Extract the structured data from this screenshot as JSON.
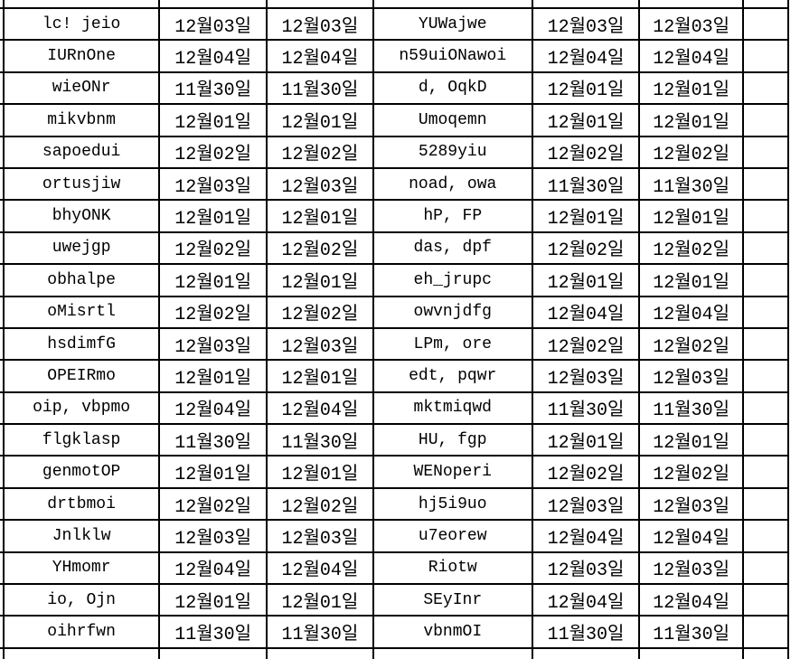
{
  "colors": {
    "background": "#ffffff",
    "grid_line": "#000000",
    "text": "#000000"
  },
  "table": {
    "column_kinds": [
      "label",
      "date",
      "date",
      "label",
      "date",
      "date"
    ],
    "rows": [
      [
        "lc! jeio",
        "12월03일",
        "12월03일",
        "YUWajwe",
        "12월03일",
        "12월03일"
      ],
      [
        "IURnOne",
        "12월04일",
        "12월04일",
        "n59uiONawoi",
        "12월04일",
        "12월04일"
      ],
      [
        "wieONr",
        "11월30일",
        "11월30일",
        "d, OqkD",
        "12월01일",
        "12월01일"
      ],
      [
        "mikvbnm",
        "12월01일",
        "12월01일",
        "Umoqemn",
        "12월01일",
        "12월01일"
      ],
      [
        "sapoedui",
        "12월02일",
        "12월02일",
        "5289yiu",
        "12월02일",
        "12월02일"
      ],
      [
        "ortusjiw",
        "12월03일",
        "12월03일",
        "noad, owa",
        "11월30일",
        "11월30일"
      ],
      [
        "bhyONK",
        "12월01일",
        "12월01일",
        "hP, FP",
        "12월01일",
        "12월01일"
      ],
      [
        "uwejgp",
        "12월02일",
        "12월02일",
        "das, dpf",
        "12월02일",
        "12월02일"
      ],
      [
        "obhalpe",
        "12월01일",
        "12월01일",
        "eh_jrupc",
        "12월01일",
        "12월01일"
      ],
      [
        "oMisrtl",
        "12월02일",
        "12월02일",
        "owvnjdfg",
        "12월04일",
        "12월04일"
      ],
      [
        "hsdimfG",
        "12월03일",
        "12월03일",
        "LPm, ore",
        "12월02일",
        "12월02일"
      ],
      [
        "OPEIRmo",
        "12월01일",
        "12월01일",
        "edt, pqwr",
        "12월03일",
        "12월03일"
      ],
      [
        "oip, vbpmo",
        "12월04일",
        "12월04일",
        "mktmiqwd",
        "11월30일",
        "11월30일"
      ],
      [
        "flgklasp",
        "11월30일",
        "11월30일",
        "HU, fgp",
        "12월01일",
        "12월01일"
      ],
      [
        "genmotOP",
        "12월01일",
        "12월01일",
        "WENoperi",
        "12월02일",
        "12월02일"
      ],
      [
        "drtbmoi",
        "12월02일",
        "12월02일",
        "hj5i9uo",
        "12월03일",
        "12월03일"
      ],
      [
        "Jnlklw",
        "12월03일",
        "12월03일",
        "u7eorew",
        "12월04일",
        "12월04일"
      ],
      [
        "YHmomr",
        "12월04일",
        "12월04일",
        "Riotw",
        "12월03일",
        "12월03일"
      ],
      [
        "io, Ojn",
        "12월01일",
        "12월01일",
        "SEyInr",
        "12월04일",
        "12월04일"
      ],
      [
        "oihrfwn",
        "11월30일",
        "11월30일",
        "vbnmOI",
        "11월30일",
        "11월30일"
      ]
    ]
  }
}
